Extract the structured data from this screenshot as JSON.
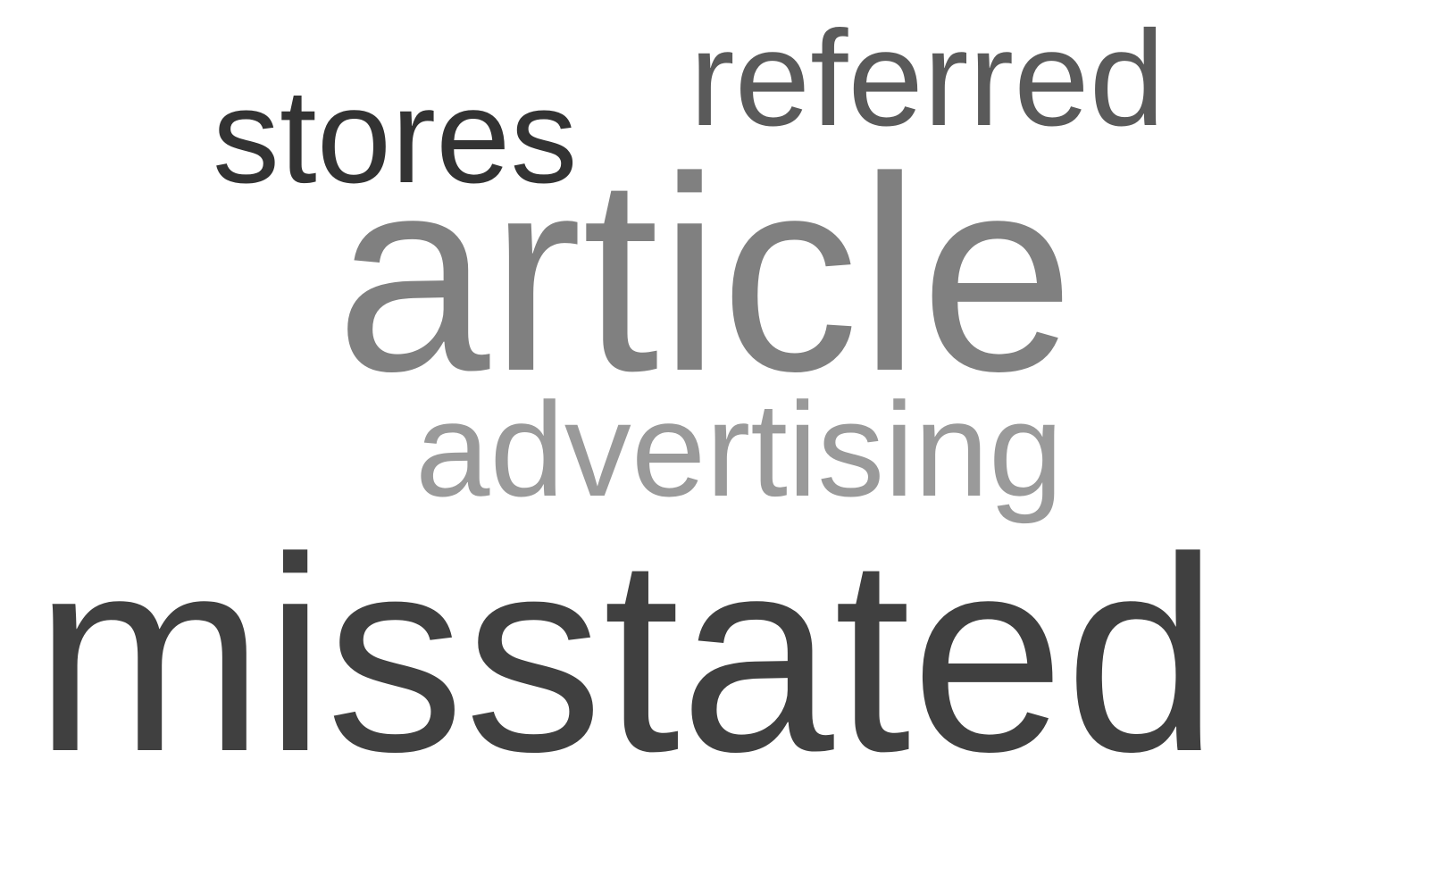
{
  "words": [
    {
      "text": "stores",
      "color": "#333333"
    },
    {
      "text": "referred",
      "color": "#5a5a5a"
    },
    {
      "text": "article",
      "color": "#808080"
    },
    {
      "text": "advertising",
      "color": "#9a9a9a"
    },
    {
      "text": "misstated",
      "color": "#404040"
    }
  ]
}
